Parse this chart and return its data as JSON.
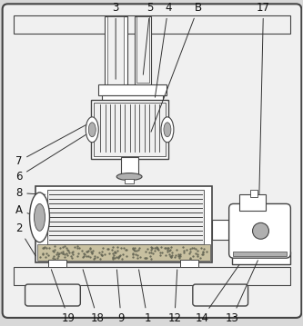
{
  "bg_color": "#d8d8d8",
  "line_color": "#444444",
  "fill_white": "#ffffff",
  "fill_light": "#f0f0f0",
  "fill_gray": "#b0b0b0",
  "fill_sand": "#c8c0a0",
  "label_fontsize": 8.5
}
